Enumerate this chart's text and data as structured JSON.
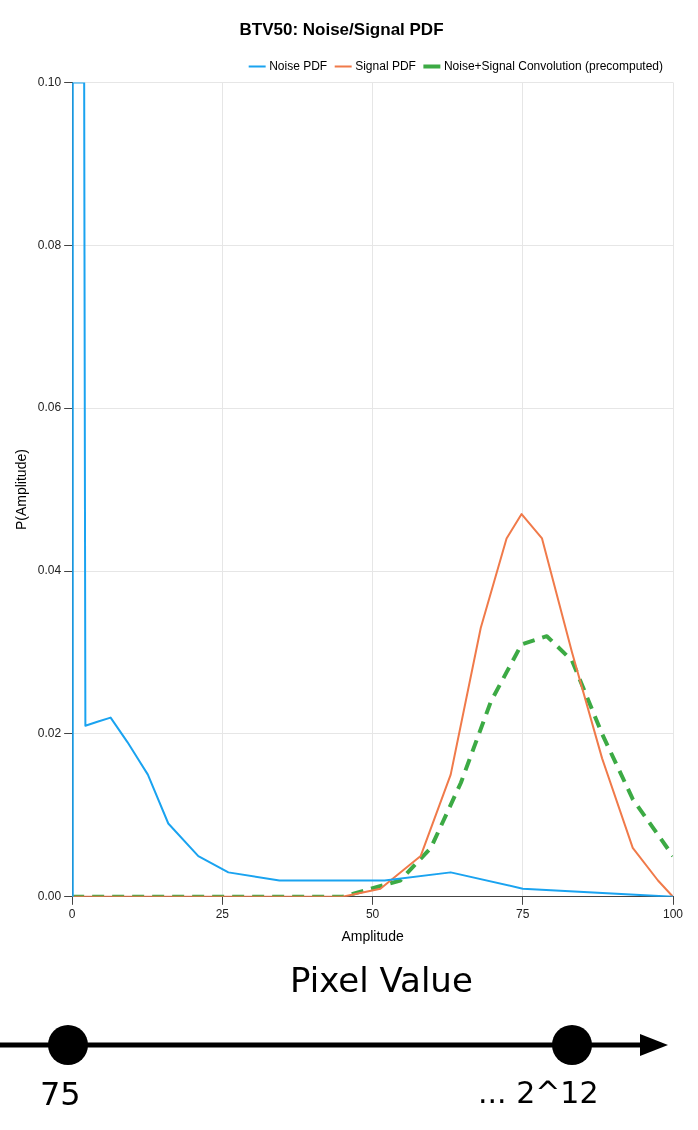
{
  "chart_data": {
    "type": "line",
    "title": "BTV50: Noise/Signal PDF",
    "xlabel": "Amplitude",
    "ylabel": "P(Amplitude)",
    "xlim": [
      0,
      100
    ],
    "xticks": [
      0,
      25,
      50,
      75,
      100
    ],
    "ylim": [
      0,
      0.1
    ],
    "yticks": [
      {
        "value": 0,
        "label": "0.00"
      },
      0.02,
      0.04,
      0.06,
      0.08,
      {
        "value": 0.1,
        "label": "0.10"
      }
    ],
    "grid": true,
    "legend": "top right",
    "marker": "none",
    "series": [
      {
        "name": "Noise PDF",
        "color": "#1aa3f0",
        "line_style": "solid",
        "x": [
          0,
          0.1,
          2,
          2.2,
          4.2,
          6.4,
          9.2,
          12.6,
          16,
          21,
          26,
          34.5,
          42.9,
          52,
          63,
          75,
          100
        ],
        "values": [
          0,
          0.1,
          0.1,
          0.021,
          0.0215,
          0.022,
          0.019,
          0.015,
          0.009,
          0.005,
          0.003,
          0.002,
          0.002,
          0.002,
          0.003,
          0.001,
          0
        ]
      },
      {
        "name": "Signal PDF",
        "color": "#f07a4a",
        "line_style": "solid",
        "x": [
          0,
          45,
          51.3,
          58,
          63,
          68,
          72.3,
          74.8,
          78.2,
          83.2,
          88.2,
          93.3,
          97.5,
          100
        ],
        "values": [
          0,
          0,
          0.001,
          0.005,
          0.015,
          0.033,
          0.044,
          0.047,
          0.044,
          0.03,
          0.017,
          0.006,
          0.002,
          0
        ]
      },
      {
        "name": "Noise+Signal Convolution (precomputed)",
        "color": "#3caa44",
        "line_style": "dashed",
        "x": [
          0,
          45,
          54.6,
          59.7,
          64.7,
          69.7,
          74.8,
          79,
          83.2,
          88.2,
          93.3,
          100
        ],
        "values": [
          0,
          0,
          0.002,
          0.006,
          0.014,
          0.024,
          0.031,
          0.032,
          0.029,
          0.02,
          0.012,
          0.005
        ]
      }
    ],
    "annotations": [
      "Pixel Value",
      "75",
      "... 2^12"
    ]
  }
}
